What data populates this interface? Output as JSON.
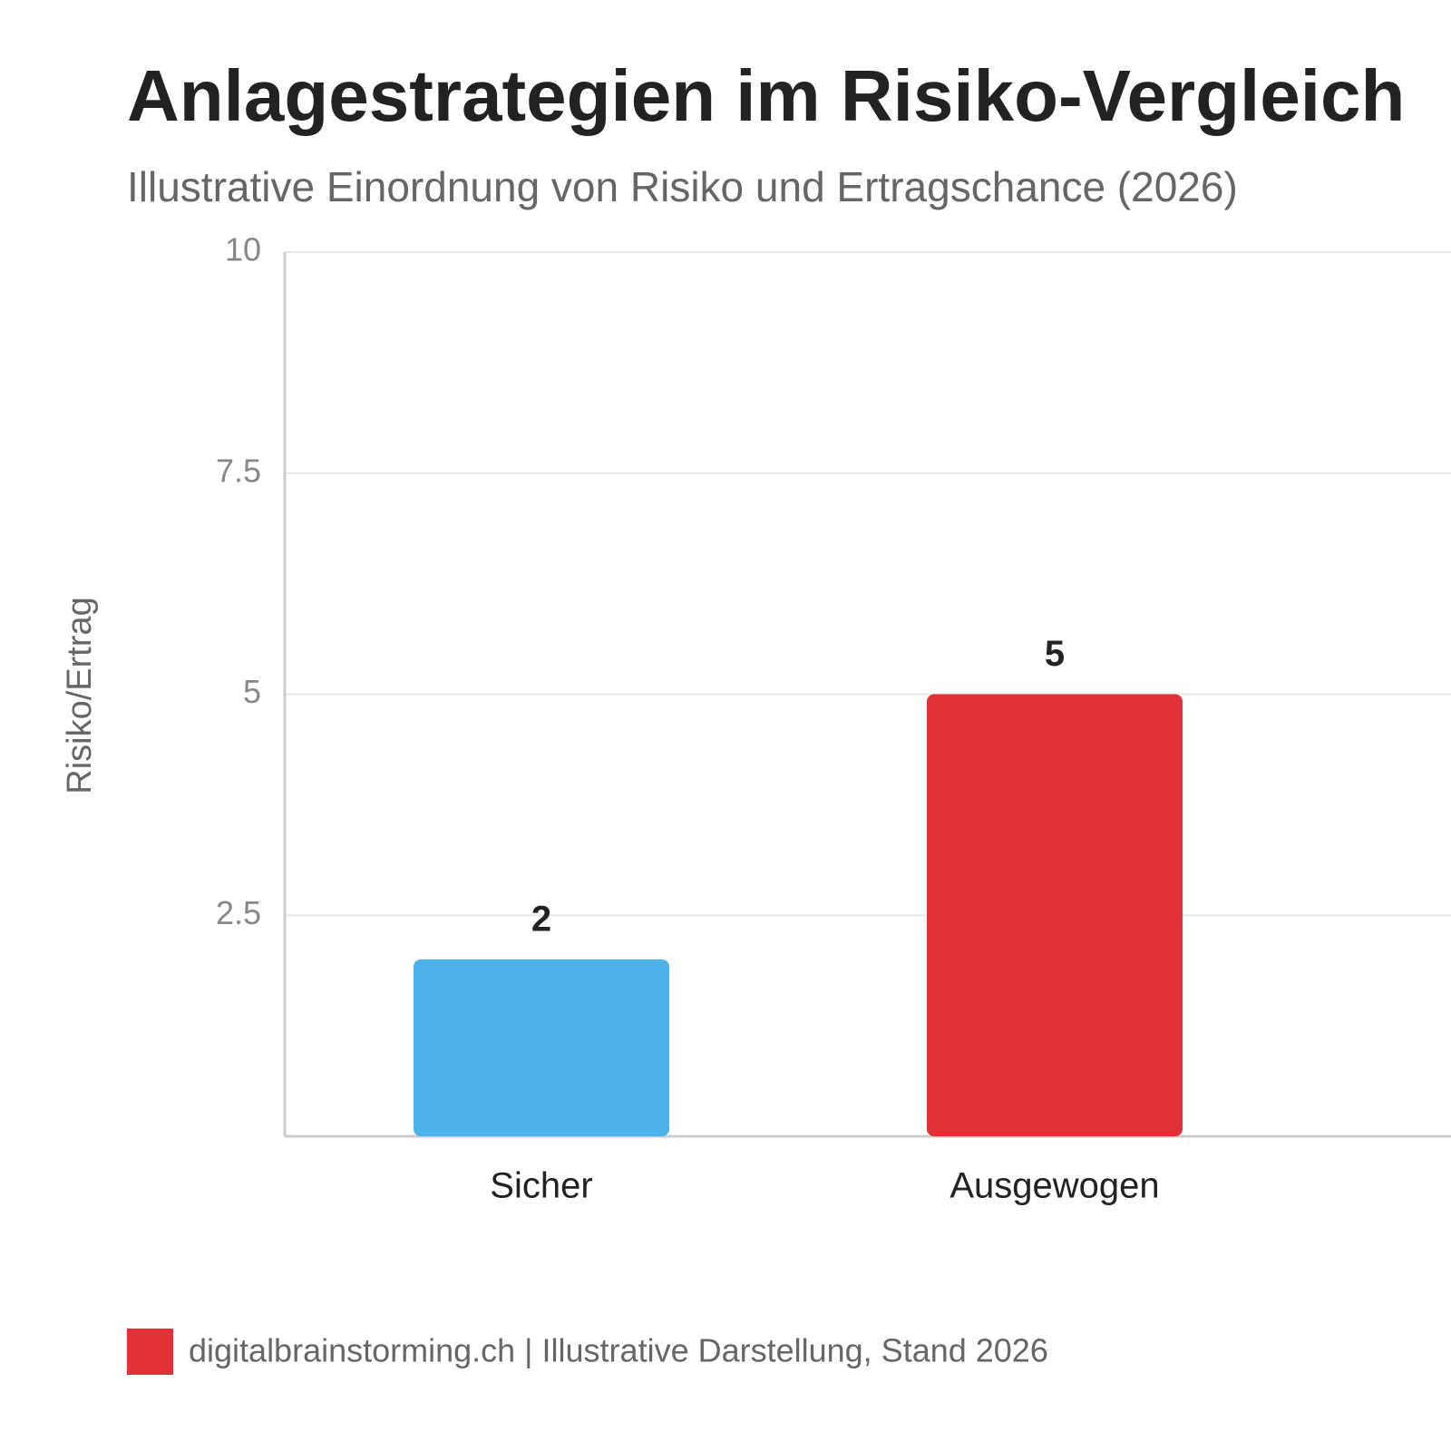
{
  "chart_data": {
    "type": "bar",
    "title": "Anlagestrategien im Risiko-Vergleich",
    "subtitle": "Illustrative Einordnung von Risiko und Ertragschance (2026)",
    "y_label": "Risiko/Ertrag",
    "categories": [
      "Sicher",
      "Ausgewogen"
    ],
    "values": [
      2,
      5
    ],
    "colors": [
      "#4fb1e9",
      "#e03236"
    ],
    "ylim": [
      0,
      10
    ],
    "yticks": [
      2.5,
      5,
      7.5,
      10
    ],
    "grid": true,
    "source": "digitalbrainstorming.ch | Illustrative Darstellung, Stand 2026"
  }
}
